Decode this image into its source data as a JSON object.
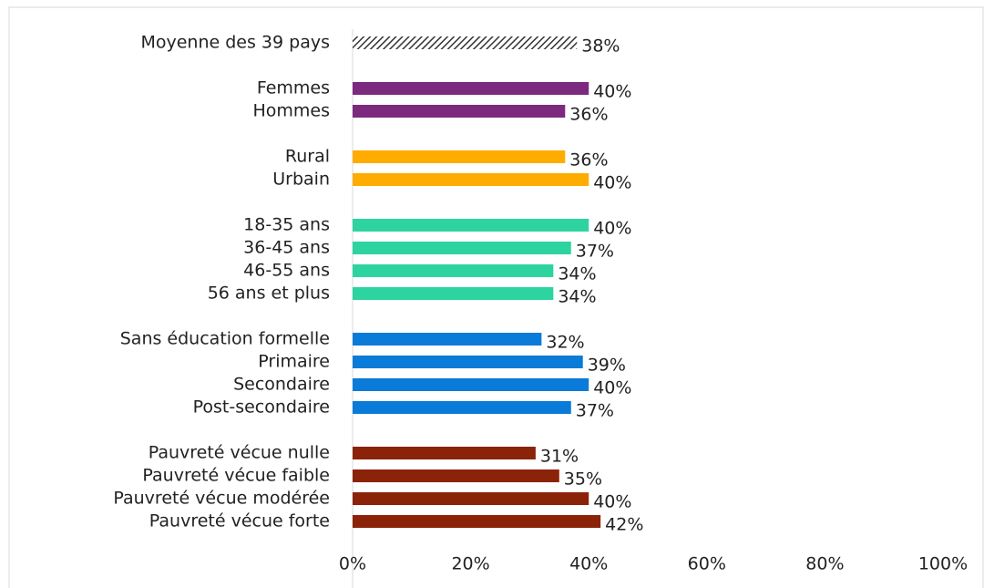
{
  "chart_data": {
    "type": "bar",
    "orientation": "horizontal",
    "categories": [
      "Moyenne des 39 pays",
      null,
      "Femmes",
      "Hommes",
      null,
      "Rural",
      "Urbain",
      null,
      "18-35 ans",
      "36-45 ans",
      "46-55 ans",
      "56 ans et plus",
      null,
      "Sans éducation formelle",
      "Primaire",
      "Secondaire",
      "Post-secondaire",
      null,
      "Pauvreté vécue nulle",
      "Pauvreté vécue faible",
      "Pauvreté vécue modérée",
      "Pauvreté vécue forte"
    ],
    "values": [
      38,
      null,
      40,
      36,
      null,
      36,
      40,
      null,
      40,
      37,
      34,
      34,
      null,
      32,
      39,
      40,
      37,
      null,
      31,
      35,
      40,
      42
    ],
    "value_labels": [
      "38%",
      null,
      "40%",
      "36%",
      null,
      "36%",
      "40%",
      null,
      "40%",
      "37%",
      "34%",
      "34%",
      null,
      "32%",
      "39%",
      "40%",
      "37%",
      null,
      "31%",
      "35%",
      "40%",
      "42%"
    ],
    "colors": [
      "#333333",
      null,
      "#7b2a7e",
      "#7b2a7e",
      null,
      "#ffac00",
      "#ffac00",
      null,
      "#2dd4a0",
      "#2dd4a0",
      "#2dd4a0",
      "#2dd4a0",
      null,
      "#0a7bd8",
      "#0a7bd8",
      "#0a7bd8",
      "#0a7bd8",
      null,
      "#8b2309",
      "#8b2309",
      "#8b2309",
      "#8b2309"
    ],
    "patterns": [
      "hatch",
      null,
      null,
      null,
      null,
      null,
      null,
      null,
      null,
      null,
      null,
      null,
      null,
      null,
      null,
      null,
      null,
      null,
      null,
      null,
      null,
      null
    ],
    "xlim": [
      0,
      100
    ],
    "xticks": [
      {
        "value": 0,
        "label": "0%"
      },
      {
        "value": 20,
        "label": "20%"
      },
      {
        "value": 40,
        "label": "40%"
      },
      {
        "value": 60,
        "label": "60%"
      },
      {
        "value": 80,
        "label": "80%"
      },
      {
        "value": 100,
        "label": "100%"
      }
    ]
  }
}
